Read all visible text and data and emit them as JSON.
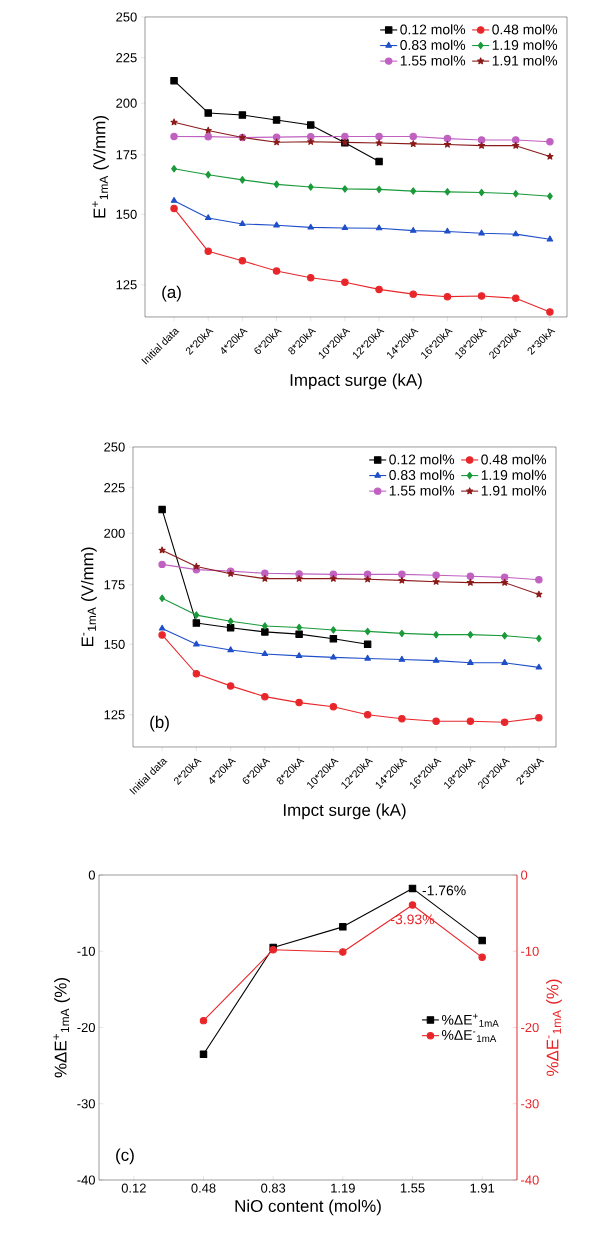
{
  "chart_data": [
    {
      "type": "line",
      "xlabel": "Impact surge (kA)",
      "ylabel": "E$^{+}$$_{1mA}$ (V/mm)",
      "categories": [
        "Initial data",
        "2*20kA",
        "4*20kA",
        "6*20kA",
        "8*20kA",
        "10*20kA",
        "12*20kA",
        "14*20kA",
        "16*20kA",
        "18*20kA",
        "20*20kA",
        "2*30kA"
      ],
      "log": "y",
      "ylim": [
        115,
        250
      ],
      "yticks": [
        125,
        150,
        175,
        200,
        225,
        250
      ],
      "legend": "top right",
      "annotations": [
        "(a)"
      ],
      "series": [
        {
          "name": "0.12 mol%",
          "color": "#000000",
          "marker": "square",
          "values": [
            212,
            195,
            194,
            191.5,
            189,
            180.5,
            172,
            null,
            null,
            null,
            null,
            null
          ]
        },
        {
          "name": "0.48 mol%",
          "color": "#e8262a",
          "marker": "circle",
          "values": [
            152.3,
            136.3,
            133,
            129.5,
            127.3,
            125.8,
            123.5,
            122,
            121.2,
            121.4,
            120.7,
            116.5
          ]
        },
        {
          "name": "0.83 mol%",
          "color": "#1f4fc8",
          "marker": "triangle",
          "values": [
            155.4,
            148.6,
            146.3,
            145.8,
            145,
            144.8,
            144.7,
            143.8,
            143.5,
            142.8,
            142.5,
            140.6
          ]
        },
        {
          "name": "1.19 mol%",
          "color": "#1a9a3a",
          "marker": "diamond",
          "values": [
            168.8,
            166.2,
            164,
            162.1,
            161,
            160.2,
            160,
            159.3,
            159,
            158.7,
            158.2,
            157.2
          ]
        },
        {
          "name": "1.55 mol%",
          "color": "#c060c0",
          "marker": "circle",
          "values": [
            183.5,
            183.4,
            183,
            183.2,
            183.4,
            183.5,
            183.5,
            183.5,
            182.5,
            181.8,
            181.8,
            181
          ]
        },
        {
          "name": "1.91 mol%",
          "color": "#8b1a1a",
          "marker": "star",
          "values": [
            190.4,
            186.4,
            183,
            180.8,
            181,
            180.7,
            180.4,
            180,
            179.7,
            179.2,
            179.2,
            174.2
          ]
        }
      ]
    },
    {
      "type": "line",
      "xlabel": "Impct surge (kA)",
      "ylabel": "E$^{-}$$_{1mA}$ (V/mm)",
      "categories": [
        "Initial data",
        "2*20kA",
        "4*20kA",
        "6*20kA",
        "8*20kA",
        "10*20kA",
        "12*20kA",
        "14*20kA",
        "16*20kA",
        "18*20kA",
        "20*20kA",
        "2*30kA"
      ],
      "log": "y",
      "ylim": [
        115,
        250
      ],
      "yticks": [
        125,
        150,
        175,
        200,
        225,
        250
      ],
      "legend": "top right",
      "annotations": [
        "(b)"
      ],
      "series": [
        {
          "name": "0.12 mol%",
          "color": "#000000",
          "marker": "square",
          "values": [
            212.6,
            158.5,
            156.6,
            154.9,
            154,
            152.2,
            150,
            null,
            null,
            null,
            null,
            null
          ]
        },
        {
          "name": "0.48 mol%",
          "color": "#e8262a",
          "marker": "circle",
          "values": [
            153.7,
            139,
            134.7,
            131,
            129,
            127.6,
            125,
            123.7,
            122.9,
            122.9,
            122.6,
            124
          ]
        },
        {
          "name": "0.83 mol%",
          "color": "#1f4fc8",
          "marker": "triangle",
          "values": [
            156.3,
            150,
            147.8,
            146.3,
            145.6,
            145,
            144.6,
            144.2,
            143.8,
            143,
            143,
            141.3
          ]
        },
        {
          "name": "1.19 mol%",
          "color": "#1a9a3a",
          "marker": "diamond",
          "values": [
            169,
            161.8,
            159.2,
            157.3,
            156.7,
            155.7,
            155.1,
            154.3,
            153.8,
            153.8,
            153.4,
            152.3
          ]
        },
        {
          "name": "1.55 mol%",
          "color": "#c060c0",
          "marker": "circle",
          "values": [
            184.5,
            182,
            181.3,
            180.3,
            180,
            179.8,
            179.8,
            179.8,
            179.4,
            178.9,
            178.4,
            177.3
          ]
        },
        {
          "name": "1.91 mol%",
          "color": "#8b1a1a",
          "marker": "star",
          "values": [
            191.4,
            183.5,
            180.1,
            177.8,
            177.8,
            177.8,
            177.5,
            177,
            176.4,
            176,
            176,
            170.7
          ]
        }
      ]
    },
    {
      "type": "line",
      "xlabel": "NiO content (mol%)",
      "ylabel": "%ΔE$^{+}$$_{1mA}$ (%)",
      "y2label": "%ΔE$^{-}$$_{1mA}$ (%)",
      "categories": [
        "0.12",
        "0.48",
        "0.83",
        "1.19",
        "1.55",
        "1.91"
      ],
      "ylim": [
        -40,
        0
      ],
      "yticks": [
        -40,
        -30,
        -20,
        -10,
        0
      ],
      "y2lim": [
        -40,
        0
      ],
      "y2ticks": [
        -40,
        -30,
        -20,
        -10,
        0
      ],
      "legend": "right",
      "annotations": [
        "(c)",
        {
          "text": "-1.76%",
          "x": "1.55",
          "y": -1.76
        },
        {
          "text": "-3.93%",
          "x": "1.55",
          "y": -3.93
        }
      ],
      "series": [
        {
          "name": "%ΔE$^{+}$$_{1mA}$",
          "color": "#000000",
          "marker": "square",
          "values": [
            null,
            -23.5,
            -9.5,
            -6.8,
            -1.76,
            -8.6
          ]
        },
        {
          "name": "%ΔE$^{-}$$_{1mA}$",
          "color": "#e8262a",
          "marker": "circle",
          "axis": "y2",
          "values": [
            null,
            -19.1,
            -9.8,
            -10.1,
            -3.93,
            -10.8
          ]
        }
      ]
    }
  ]
}
